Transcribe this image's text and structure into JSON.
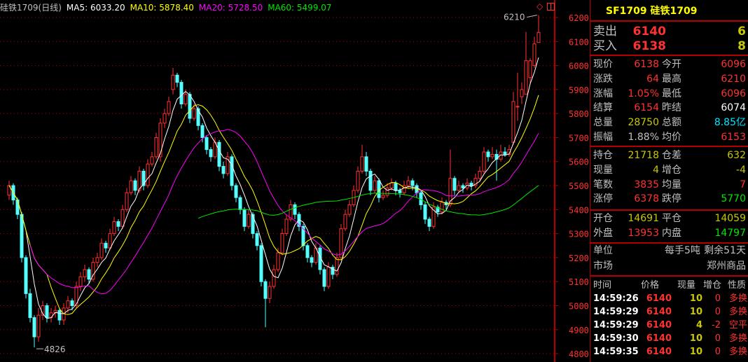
{
  "header": {
    "symbol_label": "硅铁1709(日线)",
    "ma5": "MA5: 6033.20",
    "ma10": "MA10: 5878.40",
    "ma20": "MA20: 5728.50",
    "ma60": "MA60: 5499.07"
  },
  "colors": {
    "up": "#ff3232",
    "down": "#54ffff",
    "ma5": "#ffffff",
    "ma10": "#ffff00",
    "ma20": "#ff00ff",
    "ma60": "#00e600",
    "grid": "#b00000",
    "axis_text": "#ff3232"
  },
  "chart_data": {
    "type": "candlestick",
    "ylim": [
      4780,
      6230
    ],
    "yticks": [
      6200,
      6100,
      6000,
      5900,
      5800,
      5700,
      5600,
      5500,
      5400,
      5300,
      5200,
      5100,
      5000,
      4900,
      4800
    ],
    "grid": true,
    "annotations": {
      "high_label": "6210",
      "low_label": "4826"
    },
    "ma_periods": [
      5,
      10,
      20,
      60
    ],
    "ohlc": [
      [
        5460,
        5520,
        5440,
        5500
      ],
      [
        5500,
        5510,
        5420,
        5440
      ],
      [
        5440,
        5450,
        5360,
        5380
      ],
      [
        5380,
        5390,
        5180,
        5200
      ],
      [
        5200,
        5210,
        5030,
        5050
      ],
      [
        5050,
        5070,
        4930,
        4950
      ],
      [
        4950,
        4960,
        4826,
        4870
      ],
      [
        4870,
        4990,
        4850,
        4960
      ],
      [
        4960,
        5020,
        4940,
        5000
      ],
      [
        5000,
        5010,
        4930,
        4950
      ],
      [
        4950,
        4990,
        4930,
        4970
      ],
      [
        4970,
        5000,
        4950,
        4980
      ],
      [
        4980,
        4990,
        4920,
        4940
      ],
      [
        4940,
        5010,
        4920,
        4990
      ],
      [
        4990,
        5040,
        4970,
        5020
      ],
      [
        5020,
        5030,
        4980,
        5000
      ],
      [
        5000,
        5100,
        4990,
        5080
      ],
      [
        5080,
        5140,
        5060,
        5120
      ],
      [
        5120,
        5170,
        5100,
        5150
      ],
      [
        5150,
        5160,
        5090,
        5110
      ],
      [
        5110,
        5200,
        5100,
        5180
      ],
      [
        5180,
        5220,
        5160,
        5200
      ],
      [
        5200,
        5280,
        5190,
        5260
      ],
      [
        5260,
        5270,
        5220,
        5240
      ],
      [
        5240,
        5320,
        5230,
        5300
      ],
      [
        5300,
        5370,
        5290,
        5350
      ],
      [
        5350,
        5360,
        5310,
        5330
      ],
      [
        5330,
        5420,
        5320,
        5400
      ],
      [
        5400,
        5490,
        5390,
        5470
      ],
      [
        5470,
        5540,
        5460,
        5520
      ],
      [
        5520,
        5530,
        5460,
        5480
      ],
      [
        5480,
        5580,
        5470,
        5560
      ],
      [
        5560,
        5570,
        5480,
        5500
      ],
      [
        5500,
        5610,
        5490,
        5590
      ],
      [
        5590,
        5640,
        5580,
        5620
      ],
      [
        5620,
        5720,
        5610,
        5700
      ],
      [
        5620,
        5780,
        5600,
        5760
      ],
      [
        5760,
        5820,
        5740,
        5800
      ],
      [
        5800,
        5870,
        5790,
        5850
      ],
      [
        5900,
        5990,
        5880,
        5960
      ],
      [
        5960,
        5970,
        5910,
        5930
      ],
      [
        5930,
        5940,
        5820,
        5840
      ],
      [
        5840,
        5900,
        5830,
        5880
      ],
      [
        5880,
        5890,
        5760,
        5780
      ],
      [
        5780,
        5840,
        5770,
        5820
      ],
      [
        5820,
        5830,
        5730,
        5750
      ],
      [
        5750,
        5760,
        5680,
        5700
      ],
      [
        5700,
        5710,
        5630,
        5650
      ],
      [
        5650,
        5660,
        5600,
        5620
      ],
      [
        5620,
        5700,
        5610,
        5680
      ],
      [
        5680,
        5690,
        5560,
        5580
      ],
      [
        5580,
        5600,
        5530,
        5550
      ],
      [
        5550,
        5640,
        5540,
        5620
      ],
      [
        5620,
        5630,
        5480,
        5500
      ],
      [
        5500,
        5510,
        5430,
        5450
      ],
      [
        5450,
        5460,
        5380,
        5400
      ],
      [
        5400,
        5410,
        5310,
        5330
      ],
      [
        5330,
        5400,
        5320,
        5380
      ],
      [
        5380,
        5390,
        5280,
        5300
      ],
      [
        5300,
        5310,
        5230,
        5250
      ],
      [
        5250,
        5260,
        5080,
        5100
      ],
      [
        5100,
        5110,
        4910,
        5030
      ],
      [
        5030,
        5100,
        5010,
        5080
      ],
      [
        5080,
        5170,
        5070,
        5150
      ],
      [
        5150,
        5240,
        5140,
        5220
      ],
      [
        5220,
        5320,
        5210,
        5300
      ],
      [
        5300,
        5380,
        5290,
        5360
      ],
      [
        5360,
        5440,
        5350,
        5420
      ],
      [
        5420,
        5430,
        5360,
        5380
      ],
      [
        5380,
        5390,
        5310,
        5330
      ],
      [
        5330,
        5340,
        5230,
        5250
      ],
      [
        5250,
        5260,
        5180,
        5200
      ],
      [
        5200,
        5210,
        5160,
        5180
      ],
      [
        5180,
        5260,
        5170,
        5240
      ],
      [
        5240,
        5250,
        5130,
        5150
      ],
      [
        5150,
        5160,
        5060,
        5080
      ],
      [
        5080,
        5180,
        5070,
        5160
      ],
      [
        5160,
        5170,
        5110,
        5130
      ],
      [
        5130,
        5220,
        5120,
        5200
      ],
      [
        5200,
        5340,
        5190,
        5320
      ],
      [
        5320,
        5400,
        5310,
        5380
      ],
      [
        5380,
        5440,
        5370,
        5420
      ],
      [
        5420,
        5500,
        5410,
        5480
      ],
      [
        5480,
        5580,
        5470,
        5560
      ],
      [
        5560,
        5670,
        5550,
        5620
      ],
      [
        5620,
        5640,
        5540,
        5560
      ],
      [
        5560,
        5570,
        5460,
        5480
      ],
      [
        5480,
        5540,
        5470,
        5520
      ],
      [
        5520,
        5530,
        5430,
        5450
      ],
      [
        5450,
        5480,
        5440,
        5460
      ],
      [
        5460,
        5510,
        5450,
        5490
      ],
      [
        5490,
        5530,
        5480,
        5510
      ],
      [
        5510,
        5520,
        5460,
        5480
      ],
      [
        5480,
        5490,
        5450,
        5470
      ],
      [
        5470,
        5520,
        5460,
        5500
      ],
      [
        5500,
        5540,
        5490,
        5520
      ],
      [
        5520,
        5530,
        5480,
        5500
      ],
      [
        5500,
        5510,
        5450,
        5470
      ],
      [
        5470,
        5480,
        5400,
        5420
      ],
      [
        5420,
        5430,
        5340,
        5360
      ],
      [
        5360,
        5370,
        5310,
        5330
      ],
      [
        5330,
        5430,
        5320,
        5410
      ],
      [
        5410,
        5420,
        5370,
        5390
      ],
      [
        5390,
        5450,
        5380,
        5430
      ],
      [
        5430,
        5440,
        5400,
        5420
      ],
      [
        5420,
        5650,
        5410,
        5530
      ],
      [
        5530,
        5540,
        5460,
        5480
      ],
      [
        5480,
        5520,
        5470,
        5500
      ],
      [
        5500,
        5510,
        5470,
        5490
      ],
      [
        5490,
        5530,
        5480,
        5510
      ],
      [
        5510,
        5520,
        5480,
        5500
      ],
      [
        5500,
        5550,
        5490,
        5530
      ],
      [
        5530,
        5580,
        5520,
        5560
      ],
      [
        5560,
        5660,
        5550,
        5640
      ],
      [
        5640,
        5650,
        5600,
        5620
      ],
      [
        5620,
        5660,
        5610,
        5630
      ],
      [
        5630,
        5650,
        5520,
        5610
      ],
      [
        5610,
        5670,
        5600,
        5640
      ],
      [
        5640,
        5660,
        5620,
        5630
      ],
      [
        5630,
        5670,
        5620,
        5650
      ],
      [
        5680,
        5890,
        5670,
        5850
      ],
      [
        5830,
        5970,
        5770,
        5830
      ],
      [
        5870,
        5930,
        5840,
        5900
      ],
      [
        5880,
        6140,
        5880,
        6020
      ],
      [
        5950,
        6030,
        5920,
        6020
      ],
      [
        6000,
        6120,
        5990,
        6090
      ],
      [
        6096,
        6210,
        6096,
        6138
      ]
    ]
  },
  "panel": {
    "title": "SF1709 硅铁1709",
    "ask": {
      "label": "卖出",
      "price": "6140",
      "vol": "6"
    },
    "bid": {
      "label": "买入",
      "price": "6138",
      "vol": "8"
    },
    "stats": [
      {
        "l1": "现价",
        "v1": "6138",
        "c1": "red",
        "l2": "今开",
        "v2": "6096",
        "c2": "red"
      },
      {
        "l1": "涨跌",
        "v1": "64",
        "c1": "red",
        "l2": "最高",
        "v2": "6210",
        "c2": "red"
      },
      {
        "l1": "涨幅",
        "v1": "1.05%",
        "c1": "red",
        "l2": "最低",
        "v2": "6096",
        "c2": "red"
      },
      {
        "l1": "结算",
        "v1": "6154",
        "c1": "red",
        "l2": "昨结",
        "v2": "6074",
        "c2": "wht"
      },
      {
        "l1": "总量",
        "v1": "28750",
        "c1": "yel",
        "l2": "总额",
        "v2": "8.85亿",
        "c2": "cyan"
      },
      {
        "l1": "振幅",
        "v1": "1.88%",
        "c1": "gry",
        "l2": "均价",
        "v2": "6153",
        "c2": "red"
      }
    ],
    "stats2": [
      {
        "l1": "持仓",
        "v1": "21718",
        "c1": "yel",
        "l2": "仓差",
        "v2": "632",
        "c2": "yel"
      },
      {
        "l1": "现量",
        "v1": "4",
        "c1": "yel",
        "l2": "增仓",
        "v2": "-4",
        "c2": "yel"
      },
      {
        "l1": "笔数",
        "v1": "3835",
        "c1": "red",
        "l2": "均量",
        "v2": "7",
        "c2": "red"
      },
      {
        "l1": "涨停",
        "v1": "6378",
        "c1": "red",
        "l2": "跌停",
        "v2": "5770",
        "c2": "grn"
      }
    ],
    "stats3": [
      {
        "l1": "开仓",
        "v1": "14691",
        "c1": "yel",
        "l2": "平仓",
        "v2": "14059",
        "c2": "yel"
      },
      {
        "l1": "外盘",
        "v1": "13953",
        "c1": "red",
        "l2": "内盘",
        "v2": "14797",
        "c2": "grn"
      }
    ],
    "unit": {
      "label": "单位",
      "value": "每手5吨",
      "remain": "剩余51天"
    },
    "market": {
      "label": "市场",
      "value": "郑州商品"
    },
    "trades_header": [
      "时间",
      "价格",
      "现量",
      "增仓",
      "性质"
    ],
    "trades": [
      {
        "time": "14:59:26",
        "price": "6140",
        "vol": "10",
        "oi": "0",
        "nature": "多换"
      },
      {
        "time": "14:59:29",
        "price": "6140",
        "vol": "10",
        "oi": "0",
        "nature": "多换"
      },
      {
        "time": "14:59:29",
        "price": "6140",
        "vol": "4",
        "oi": "-2",
        "nature": "空平"
      },
      {
        "time": "14:59:30",
        "price": "6140",
        "vol": "10",
        "oi": "0",
        "nature": "多换"
      },
      {
        "time": "14:59:35",
        "price": "6140",
        "vol": "10",
        "oi": "0",
        "nature": "多换"
      }
    ]
  }
}
